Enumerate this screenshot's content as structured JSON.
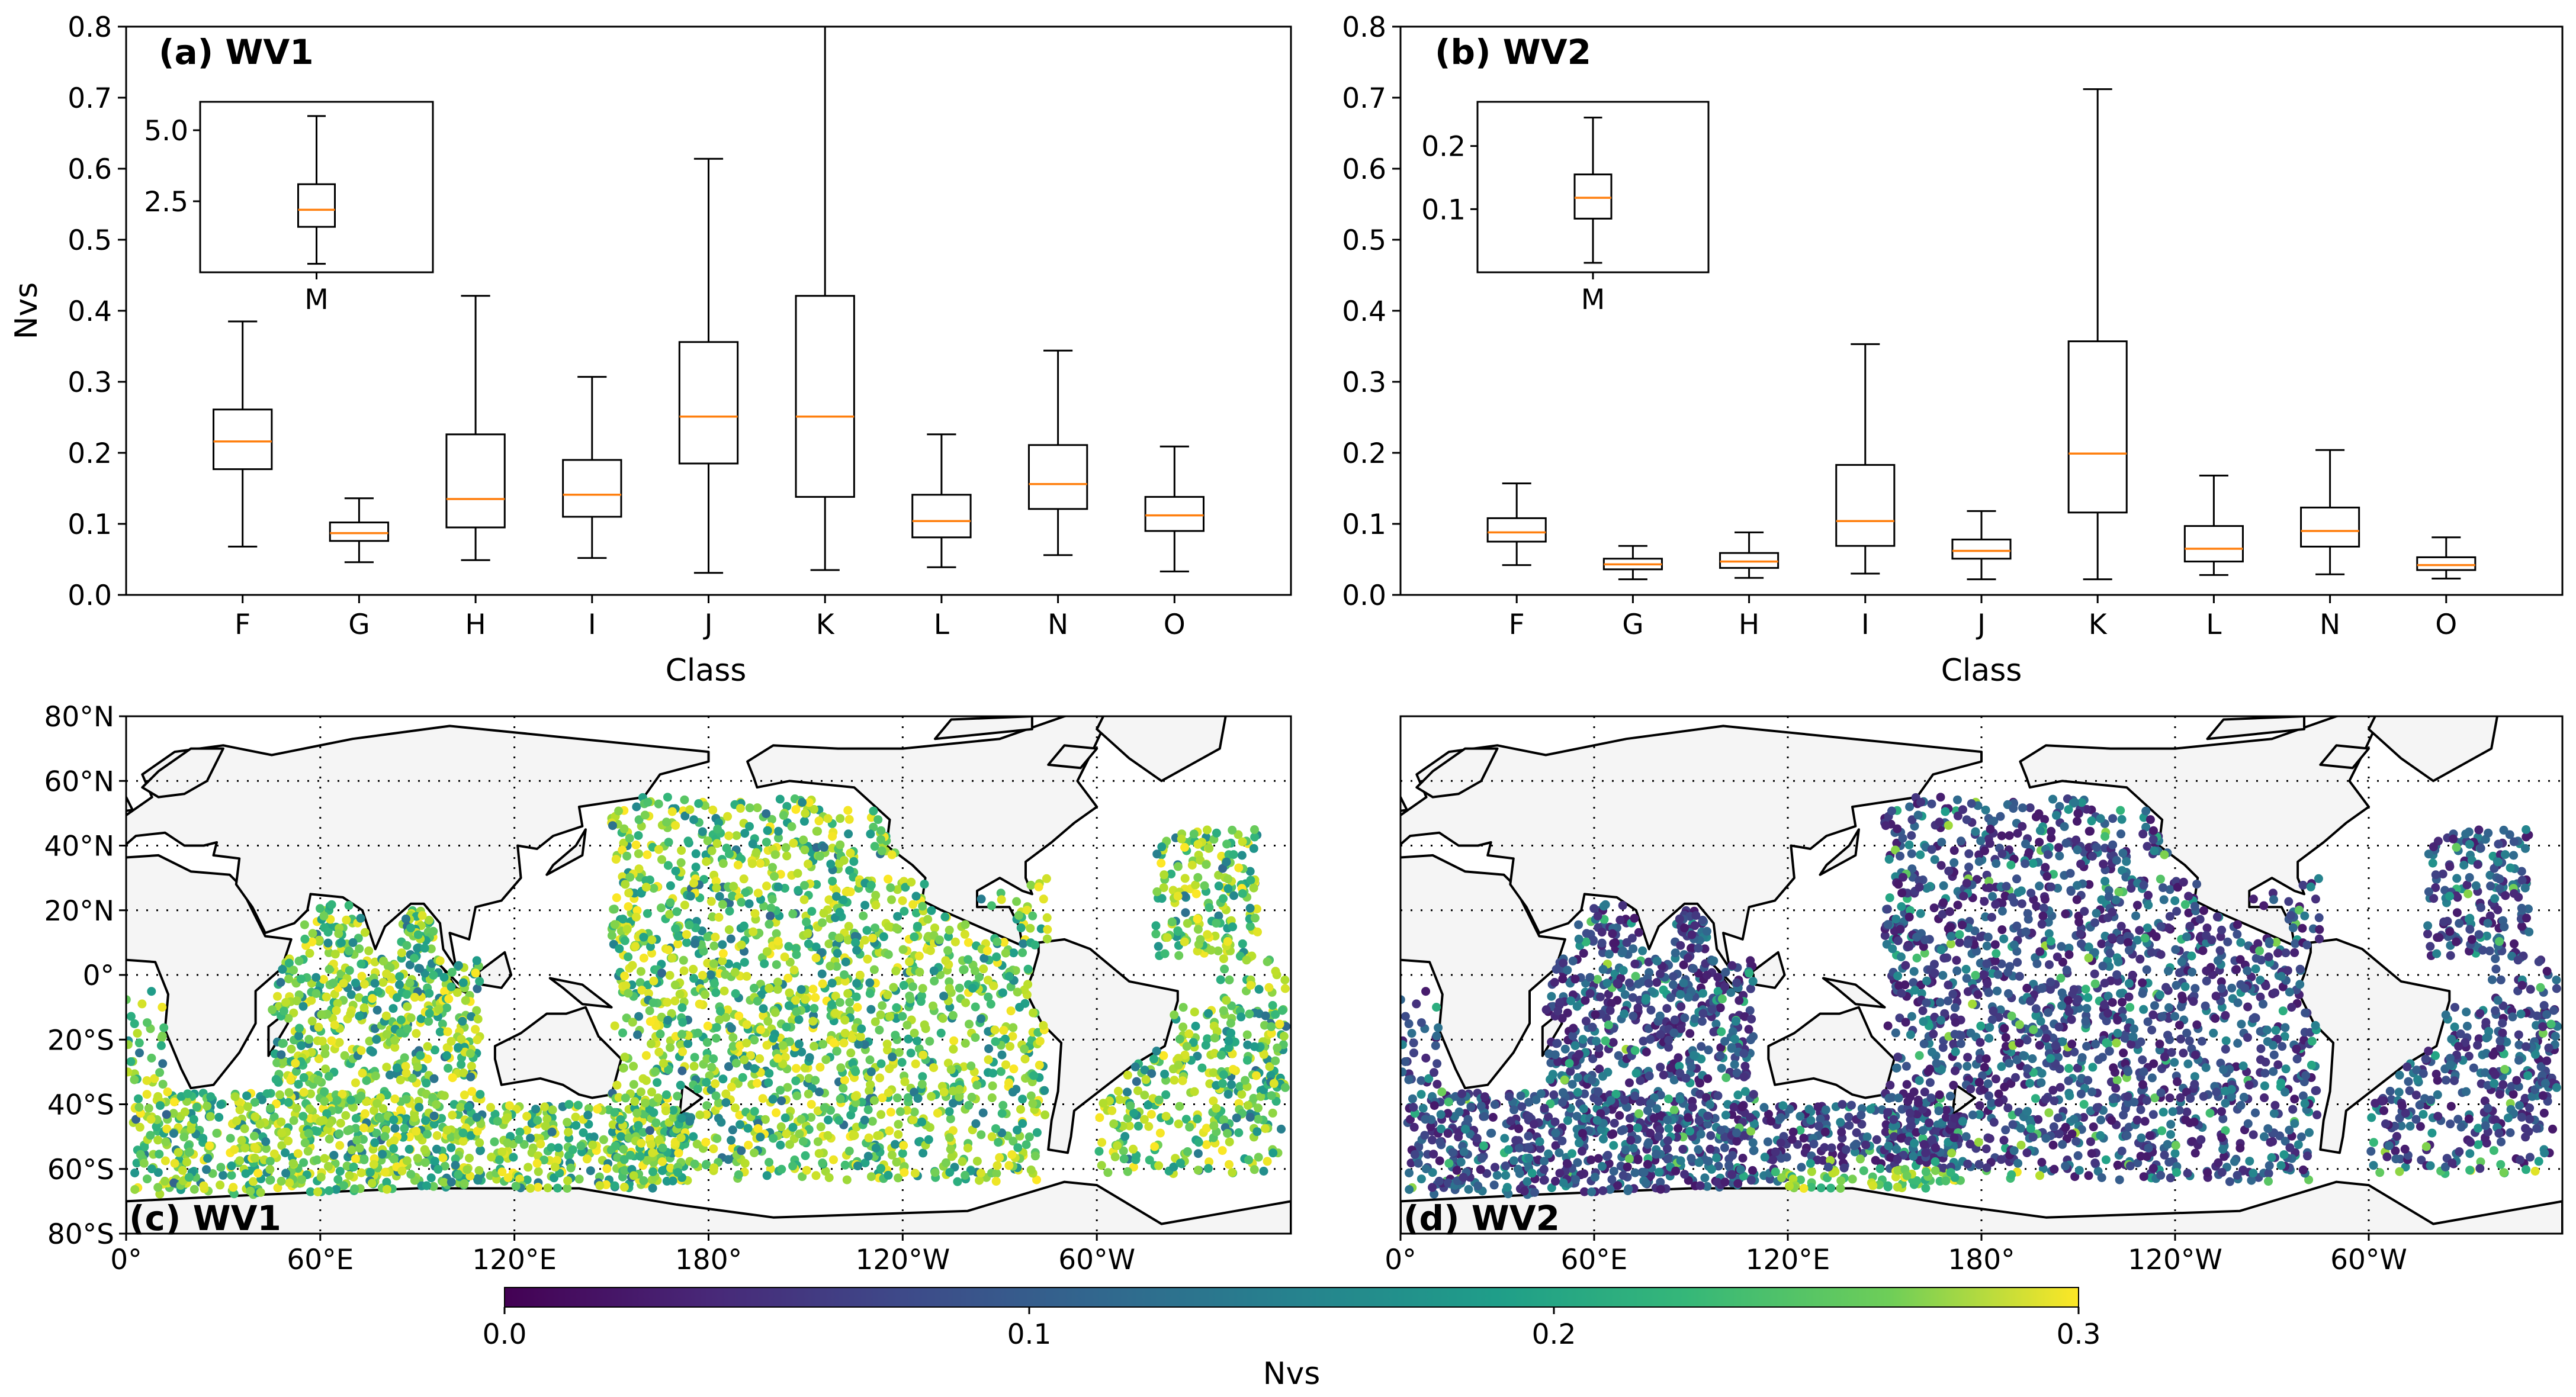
{
  "figure": {
    "panels": {
      "a": {
        "title": "(a) WV1"
      },
      "b": {
        "title": "(b) WV2"
      },
      "c": {
        "title": "(c) WV1"
      },
      "d": {
        "title": "(d) WV2"
      }
    }
  },
  "colors": {
    "box_edge": "#000000",
    "median": "#ff7f0e",
    "land": "#f5f5f5",
    "background": "#ffffff"
  },
  "chart_data": [
    {
      "id": "a",
      "type": "boxplot",
      "title": "(a) WV1",
      "xlabel": "Class",
      "ylabel": "Nvs",
      "ylim": [
        0,
        0.8
      ],
      "yticks": [
        "0.0",
        "0.1",
        "0.2",
        "0.3",
        "0.4",
        "0.5",
        "0.6",
        "0.7",
        "0.8"
      ],
      "categories": [
        "F",
        "G",
        "H",
        "I",
        "J",
        "K",
        "L",
        "N",
        "O"
      ],
      "boxes": [
        {
          "whislo": 0.068,
          "q1": 0.177,
          "med": 0.216,
          "q3": 0.261,
          "whishi": 0.385
        },
        {
          "whislo": 0.046,
          "q1": 0.076,
          "med": 0.087,
          "q3": 0.102,
          "whishi": 0.136
        },
        {
          "whislo": 0.049,
          "q1": 0.095,
          "med": 0.135,
          "q3": 0.226,
          "whishi": 0.421
        },
        {
          "whislo": 0.052,
          "q1": 0.11,
          "med": 0.141,
          "q3": 0.19,
          "whishi": 0.307
        },
        {
          "whislo": 0.031,
          "q1": 0.185,
          "med": 0.251,
          "q3": 0.356,
          "whishi": 0.614
        },
        {
          "whislo": 0.035,
          "q1": 0.138,
          "med": 0.251,
          "q3": 0.421,
          "whishi": 0.8
        },
        {
          "whislo": 0.039,
          "q1": 0.081,
          "med": 0.104,
          "q3": 0.141,
          "whishi": 0.226
        },
        {
          "whislo": 0.056,
          "q1": 0.121,
          "med": 0.156,
          "q3": 0.211,
          "whishi": 0.344
        },
        {
          "whislo": 0.033,
          "q1": 0.09,
          "med": 0.112,
          "q3": 0.138,
          "whishi": 0.209
        }
      ],
      "inset": {
        "category": "M",
        "yticks": [
          "2.5",
          "5.0"
        ],
        "ylim": [
          0,
          6
        ],
        "box": {
          "whislo": 0.3,
          "q1": 1.6,
          "med": 2.2,
          "q3": 3.1,
          "whishi": 5.5
        }
      }
    },
    {
      "id": "b",
      "type": "boxplot",
      "title": "(b) WV2",
      "xlabel": "Class",
      "ylabel": "",
      "ylim": [
        0,
        0.8
      ],
      "yticks": [
        "0.0",
        "0.1",
        "0.2",
        "0.3",
        "0.4",
        "0.5",
        "0.6",
        "0.7",
        "0.8"
      ],
      "categories": [
        "F",
        "G",
        "H",
        "I",
        "J",
        "K",
        "L",
        "N",
        "O"
      ],
      "boxes": [
        {
          "whislo": 0.042,
          "q1": 0.075,
          "med": 0.088,
          "q3": 0.108,
          "whishi": 0.157
        },
        {
          "whislo": 0.022,
          "q1": 0.036,
          "med": 0.043,
          "q3": 0.051,
          "whishi": 0.069
        },
        {
          "whislo": 0.024,
          "q1": 0.038,
          "med": 0.047,
          "q3": 0.059,
          "whishi": 0.088
        },
        {
          "whislo": 0.03,
          "q1": 0.069,
          "med": 0.104,
          "q3": 0.183,
          "whishi": 0.353
        },
        {
          "whislo": 0.022,
          "q1": 0.051,
          "med": 0.062,
          "q3": 0.078,
          "whishi": 0.118
        },
        {
          "whislo": 0.022,
          "q1": 0.116,
          "med": 0.199,
          "q3": 0.357,
          "whishi": 0.712
        },
        {
          "whislo": 0.028,
          "q1": 0.047,
          "med": 0.065,
          "q3": 0.097,
          "whishi": 0.168
        },
        {
          "whislo": 0.029,
          "q1": 0.068,
          "med": 0.09,
          "q3": 0.123,
          "whishi": 0.204
        },
        {
          "whislo": 0.023,
          "q1": 0.035,
          "med": 0.042,
          "q3": 0.053,
          "whishi": 0.081
        }
      ],
      "inset": {
        "category": "M",
        "yticks": [
          "0.1",
          "0.2"
        ],
        "ylim": [
          0.0,
          0.27
        ],
        "box": {
          "whislo": 0.015,
          "q1": 0.085,
          "med": 0.118,
          "q3": 0.155,
          "whishi": 0.245
        }
      }
    },
    {
      "id": "c",
      "type": "scatter",
      "title": "(c) WV1",
      "subtype": "geographic map (longitude 0° to 360°, latitude 80°S to 80°N)",
      "xticks": [
        "0°",
        "60°E",
        "120°E",
        "180°",
        "120°W",
        "60°W"
      ],
      "yticks": [
        "80°N",
        "60°N",
        "40°N",
        "20°N",
        "0°",
        "20°S",
        "40°S",
        "60°S",
        "80°S"
      ],
      "color_variable": "Nvs",
      "typical_nvs_range": [
        0.1,
        0.3
      ]
    },
    {
      "id": "d",
      "type": "scatter",
      "title": "(d) WV2",
      "subtype": "geographic map (longitude 0° to 360°, latitude 80°S to 80°N)",
      "xticks": [
        "0°",
        "60°E",
        "120°E",
        "180°",
        "120°W",
        "60°W"
      ],
      "color_variable": "Nvs",
      "typical_nvs_range": [
        0.0,
        0.15
      ]
    },
    {
      "id": "colorbar",
      "type": "colorbar",
      "colormap": "viridis",
      "range": [
        0.0,
        0.3
      ],
      "ticks": [
        "0.0",
        "0.1",
        "0.2",
        "0.3"
      ],
      "label": "Nvs"
    }
  ]
}
